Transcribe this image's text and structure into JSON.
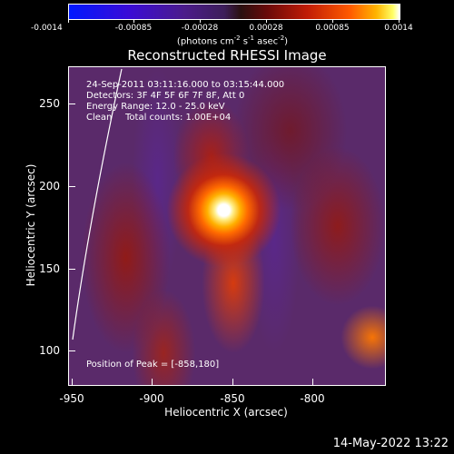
{
  "colorbar": {
    "ticks": [
      "-0.0014",
      "-0.00085",
      "-0.00028",
      "0.00028",
      "0.00085",
      "0.0014"
    ],
    "units_parts": [
      "(photons cm",
      "-2",
      " s",
      "-1",
      " asec",
      "-2",
      ")"
    ],
    "colormap": [
      "#0018ff",
      "#4b1c8a",
      "#2a1010",
      "#c01c06",
      "#ff5a00",
      "#ffff66",
      "#ffffff"
    ]
  },
  "title": "Reconstructed RHESSI Image",
  "info": {
    "time_range": "24-Sep-2011 03:11:16.000 to 03:15:44.000",
    "detectors": "Detectors: 3F 4F 5F 6F 7F 8F, Att 0",
    "energy_range": "Energy Range: 12.0 - 25.0 keV",
    "algorithm": "Clean",
    "total_counts": "Total counts: 1.00E+04",
    "peak_position": "Position of Peak = [-858,180]"
  },
  "axes": {
    "xlabel": "Heliocentric X (arcsec)",
    "ylabel": "Heliocentric Y (arcsec)",
    "xticks": [
      "-950",
      "-900",
      "-850",
      "-800"
    ],
    "yticks": [
      "250",
      "200",
      "150",
      "100"
    ],
    "xrange": [
      -950,
      -806
    ],
    "yrange": [
      78,
      272
    ]
  },
  "timestamp": "14-May-2022 13:22"
}
